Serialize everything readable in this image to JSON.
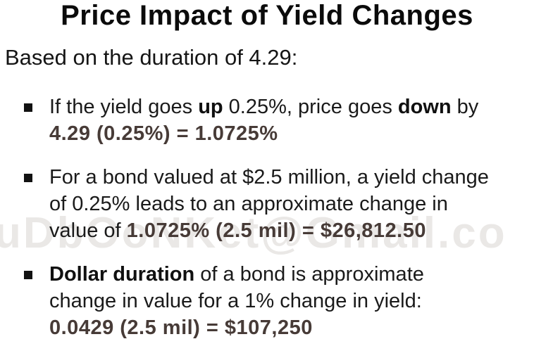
{
  "title": "Price Impact of Yield Changes",
  "lead": "Based on the duration of 4.29:",
  "bullets": [
    {
      "segments": [
        {
          "t": "If the yield goes ",
          "style": "normal"
        },
        {
          "t": "up",
          "style": "bold"
        },
        {
          "t": " 0.25%, price goes ",
          "style": "normal"
        },
        {
          "t": "down",
          "style": "bold"
        },
        {
          "t": " by",
          "style": "normal"
        },
        {
          "t": "",
          "style": "break"
        },
        {
          "t": "4.29 (0.25%) = 1.0725%",
          "style": "formula"
        }
      ]
    },
    {
      "segments": [
        {
          "t": "For a bond valued at $2.5 million, a yield change",
          "style": "normal"
        },
        {
          "t": "",
          "style": "break"
        },
        {
          "t": "of 0.25% leads to an approximate change in",
          "style": "normal"
        },
        {
          "t": "",
          "style": "break"
        },
        {
          "t": "value of ",
          "style": "normal"
        },
        {
          "t": "1.0725% (2.5 mil) = $26,812.50",
          "style": "formula"
        }
      ]
    },
    {
      "segments": [
        {
          "t": "Dollar duration",
          "style": "bold"
        },
        {
          "t": " of a bond is approximate",
          "style": "normal"
        },
        {
          "t": "",
          "style": "break"
        },
        {
          "t": "change in value for a 1% change in yield:",
          "style": "normal"
        },
        {
          "t": "",
          "style": "break"
        },
        {
          "t": "0.0429 (2.5 mil) = $107,250",
          "style": "formula"
        }
      ]
    }
  ],
  "watermark": {
    "text": "uDbOoNKet@Gmail.co"
  },
  "colors": {
    "background": "#ffffff",
    "text": "#1a1a1a",
    "title": "#0b0b0b",
    "formula": "#473b37",
    "bullet_marker": "#121212",
    "watermark": "#bab4ad"
  }
}
